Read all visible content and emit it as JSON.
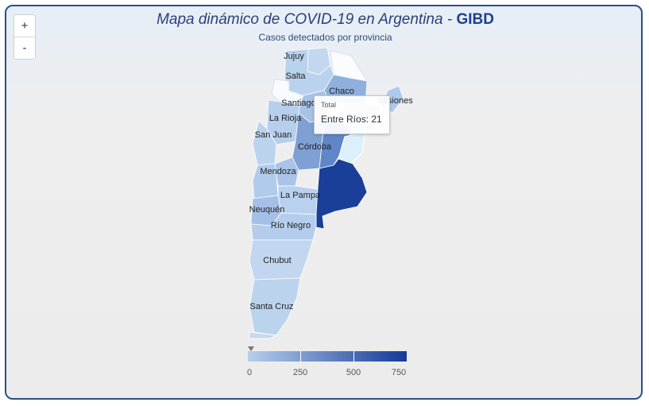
{
  "title": {
    "main": "Mapa dinámico de COVID-19 en Argentina - ",
    "brand": "GIBD"
  },
  "subtitle": "Casos detectados por provincia",
  "zoom": {
    "in": "+",
    "out": "-"
  },
  "provinces": {
    "jujuy": "Jujuy",
    "salta": "Salta",
    "chaco": "Chaco",
    "misiones": "Misiones",
    "santiago": "Santiago",
    "la_rioja": "La Rioja",
    "san_juan": "San Juan",
    "cordoba": "Córdoba",
    "mendoza": "Mendoza",
    "la_pampa": "La Pampa",
    "neuquen": "Neuquén",
    "rio_negro": "Río Negro",
    "chubut": "Chubut",
    "santa_cruz": "Santa Cruz"
  },
  "tooltip": {
    "header": "Total",
    "value": "Entre Ríos: 21"
  },
  "legend": {
    "ticks": [
      "0",
      "250",
      "500",
      "750"
    ],
    "color_min": "#b6cfec",
    "color_max": "#14399a"
  },
  "colors": {
    "frame": "#2b4f8a",
    "buenos_aires": "#1a3f98",
    "entre_rios": "#dcf0fb"
  }
}
